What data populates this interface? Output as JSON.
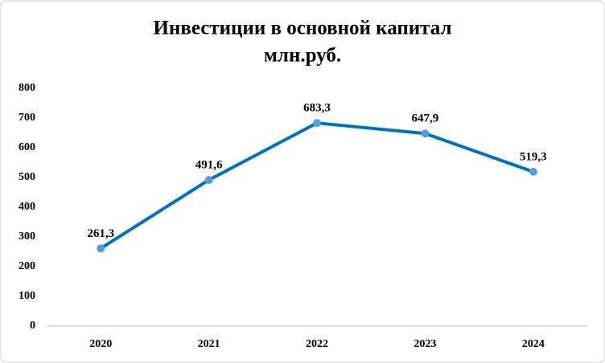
{
  "chart_data": {
    "type": "line",
    "title": "Инвестиции в основной капитал",
    "subtitle": "млн.руб.",
    "categories": [
      "2020",
      "2021",
      "2022",
      "2023",
      "2024"
    ],
    "series": [
      {
        "name": "Инвестиции в основной капитал",
        "color": "#0070c0",
        "marker_color": "#5b9bd5",
        "values": [
          261.3,
          491.6,
          683.3,
          647.9,
          519.3
        ],
        "value_labels": [
          "261,3",
          "491,6",
          "683,3",
          "647,9",
          "519,3"
        ]
      }
    ],
    "ylim": [
      0,
      800
    ],
    "yticks": [
      0,
      100,
      200,
      300,
      400,
      500,
      600,
      700,
      800
    ],
    "grid": false,
    "legend": false
  }
}
